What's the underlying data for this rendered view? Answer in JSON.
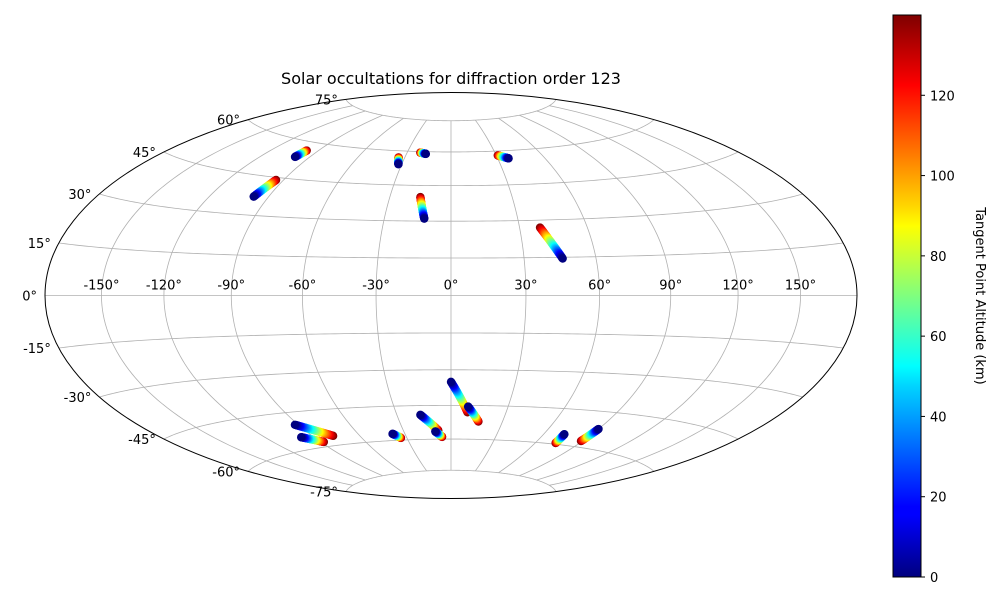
{
  "chart_data": {
    "type": "scatter",
    "projection": "hammer",
    "title": "Solar occultations for diffraction order 123",
    "grid": true,
    "lon_ticks": [
      "-150°",
      "-120°",
      "-90°",
      "-60°",
      "-30°",
      "0°",
      "30°",
      "60°",
      "90°",
      "120°",
      "150°"
    ],
    "lon_tick_values": [
      -150,
      -120,
      -90,
      -60,
      -30,
      0,
      30,
      60,
      90,
      120,
      150
    ],
    "lat_ticks": [
      "75°",
      "60°",
      "45°",
      "30°",
      "15°",
      "0°",
      "-15°",
      "-30°",
      "-45°",
      "-60°",
      "-75°"
    ],
    "lat_tick_values": [
      75,
      60,
      45,
      30,
      15,
      0,
      -15,
      -30,
      -45,
      -60,
      -75
    ],
    "colorbar": {
      "label": "Tangent Point Altitude (km)",
      "min": 0,
      "max": 140,
      "ticks": [
        0,
        20,
        40,
        60,
        80,
        100,
        120
      ],
      "tick_labels": [
        "0",
        "20",
        "40",
        "60",
        "80",
        "100",
        "120"
      ],
      "colormap": "jet"
    },
    "series": [
      {
        "lon_start": -99,
        "lat_start": 53.5,
        "lon_end": -97.5,
        "lat_end": 56.5,
        "alt_start": 0,
        "alt_end": 140
      },
      {
        "lon_start": -97.5,
        "lat_start": 37,
        "lon_end": -94,
        "lat_end": 44,
        "alt_start": 0,
        "alt_end": 140
      },
      {
        "lon_start": -32,
        "lat_start": 54,
        "lon_end": -34,
        "lat_end": 57,
        "alt_start": 0,
        "alt_end": 140
      },
      {
        "lon_start": -17,
        "lat_start": 59,
        "lon_end": -21,
        "lat_end": 59.5,
        "alt_start": 0,
        "alt_end": 140
      },
      {
        "lon_start": -12,
        "lat_start": 31,
        "lon_end": -15,
        "lat_end": 40,
        "alt_start": 0,
        "alt_end": 140
      },
      {
        "lon_start": 37,
        "lat_start": 56.5,
        "lon_end": 31,
        "lat_end": 58,
        "alt_start": 0,
        "alt_end": 140
      },
      {
        "lon_start": 46,
        "lat_start": 14.5,
        "lon_end": 39,
        "lat_end": 27,
        "alt_start": 0,
        "alt_end": 140
      },
      {
        "lon_start": 0,
        "lat_start": -35,
        "lon_end": 9,
        "lat_end": -48,
        "alt_start": 0,
        "alt_end": 140
      },
      {
        "lon_start": 9,
        "lat_start": -45.5,
        "lon_end": 16,
        "lat_end": -52,
        "alt_start": 0,
        "alt_end": 140
      },
      {
        "lon_start": -17,
        "lat_start": -49,
        "lon_end": -8,
        "lat_end": -56,
        "alt_start": 0,
        "alt_end": 140
      },
      {
        "lon_start": -10,
        "lat_start": -56.5,
        "lon_end": -6,
        "lat_end": -59,
        "alt_start": 0,
        "alt_end": 140
      },
      {
        "lon_start": -38,
        "lat_start": -57,
        "lon_end": -34,
        "lat_end": -59,
        "alt_start": 0,
        "alt_end": 140
      },
      {
        "lon_start": -92,
        "lat_start": -50,
        "lon_end": -77,
        "lat_end": -56,
        "alt_start": 0,
        "alt_end": 140
      },
      {
        "lon_start": -98,
        "lat_start": -55,
        "lon_end": -88,
        "lat_end": -58,
        "alt_start": 0,
        "alt_end": 140
      },
      {
        "lon_start": 73,
        "lat_start": -55.5,
        "lon_end": 74,
        "lat_end": -59.5,
        "alt_start": 0,
        "alt_end": 140
      },
      {
        "lon_start": 90,
        "lat_start": -52,
        "lon_end": 89,
        "lat_end": -57.5,
        "alt_start": 0,
        "alt_end": 140
      }
    ]
  }
}
